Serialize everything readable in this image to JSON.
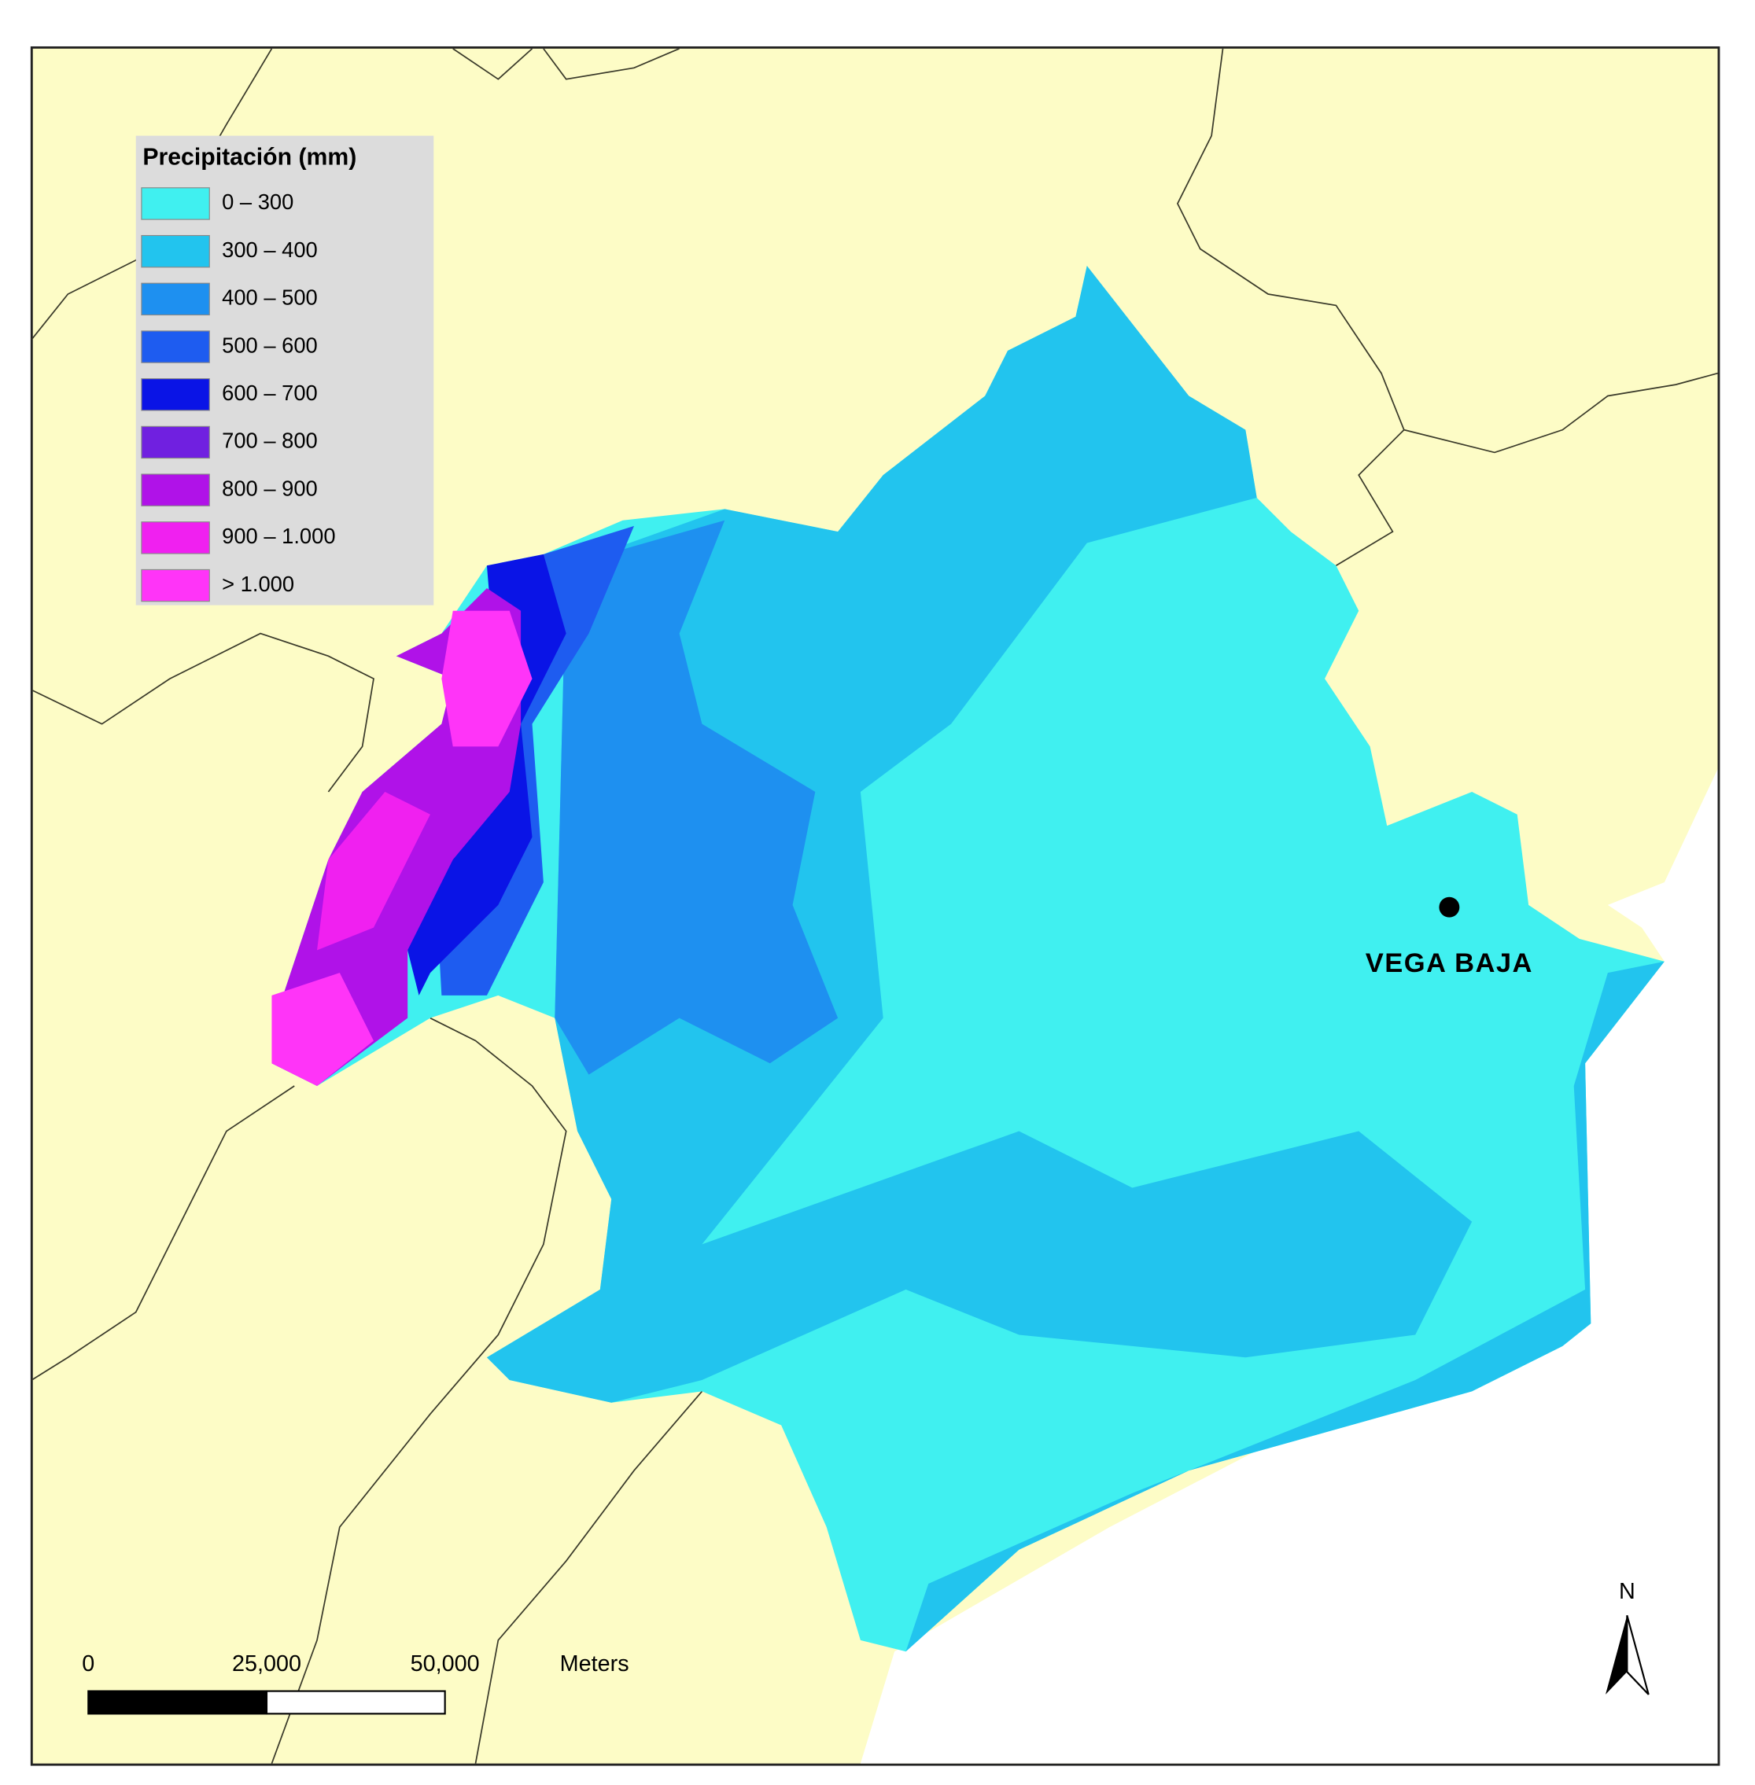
{
  "legend": {
    "title": "Precipitación (mm)",
    "items": [
      {
        "label": "0 – 300",
        "color": "#40f0f0"
      },
      {
        "label": "300 – 400",
        "color": "#22c4ee"
      },
      {
        "label": "400 – 500",
        "color": "#1e90f0"
      },
      {
        "label": "500 – 600",
        "color": "#1e5cf0"
      },
      {
        "label": "600 – 700",
        "color": "#0a14e6"
      },
      {
        "label": "700 – 800",
        "color": "#7020e0"
      },
      {
        "label": "800 – 900",
        "color": "#b012e8"
      },
      {
        "label": "900 – 1.000",
        "color": "#f020f0"
      },
      {
        "label": "> 1.000",
        "color": "#ff34f8"
      }
    ]
  },
  "place": {
    "label": "VEGA BAJA"
  },
  "scale": {
    "ticks": [
      0,
      {
        "value": 25000,
        "label": "25,000"
      },
      {
        "value": 50000,
        "label": "50,000"
      }
    ],
    "unit": "Meters"
  },
  "north": "N"
}
